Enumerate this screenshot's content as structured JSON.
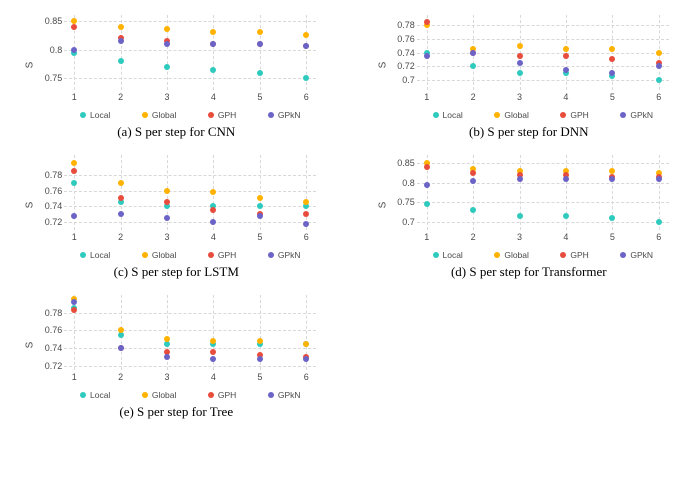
{
  "series_colors": {
    "Local": "#2ecabe",
    "Global": "#ffb300",
    "GPH": "#e74c3c",
    "GPkN": "#6c63c7"
  },
  "legend_order": [
    "Local",
    "Global",
    "GPH",
    "GPkN"
  ],
  "grid_color": "#d8d8d8",
  "background_color": "#ffffff",
  "tick_fontsize": 9,
  "caption_fontsize": 13,
  "x_values": [
    1,
    2,
    3,
    4,
    5,
    6
  ],
  "panels": [
    {
      "caption": "(a) S per step for CNN",
      "ylabel": "S",
      "ylim": [
        0.73,
        0.86
      ],
      "yticks": [
        0.75,
        0.8,
        0.85
      ],
      "series": {
        "Local": [
          0.795,
          0.78,
          0.77,
          0.765,
          0.76,
          0.75
        ],
        "Global": [
          0.85,
          0.84,
          0.835,
          0.83,
          0.83,
          0.825
        ],
        "GPH": [
          0.84,
          0.82,
          0.815,
          0.81,
          0.81,
          0.807
        ],
        "GPkN": [
          0.8,
          0.815,
          0.81,
          0.81,
          0.81,
          0.807
        ]
      }
    },
    {
      "caption": "(b) S per step for DNN",
      "ylabel": "S",
      "ylim": [
        0.685,
        0.795
      ],
      "yticks": [
        0.7,
        0.72,
        0.74,
        0.76,
        0.78
      ],
      "series": {
        "Local": [
          0.74,
          0.72,
          0.71,
          0.71,
          0.705,
          0.7
        ],
        "Global": [
          0.78,
          0.745,
          0.75,
          0.745,
          0.745,
          0.74
        ],
        "GPH": [
          0.785,
          0.74,
          0.735,
          0.735,
          0.73,
          0.725
        ],
        "GPkN": [
          0.735,
          0.74,
          0.725,
          0.715,
          0.71,
          0.72
        ]
      }
    },
    {
      "caption": "(c) S per step for LSTM",
      "ylabel": "S",
      "ylim": [
        0.71,
        0.805
      ],
      "yticks": [
        0.72,
        0.74,
        0.76,
        0.78
      ],
      "series": {
        "Local": [
          0.77,
          0.745,
          0.74,
          0.74,
          0.74,
          0.74
        ],
        "Global": [
          0.795,
          0.77,
          0.76,
          0.758,
          0.75,
          0.745
        ],
        "GPH": [
          0.785,
          0.75,
          0.745,
          0.735,
          0.73,
          0.73
        ],
        "GPkN": [
          0.728,
          0.73,
          0.725,
          0.72,
          0.728,
          0.718
        ]
      }
    },
    {
      "caption": "(d) S per step for Transformer",
      "ylabel": "S",
      "ylim": [
        0.68,
        0.87
      ],
      "yticks": [
        0.7,
        0.75,
        0.8,
        0.85
      ],
      "series": {
        "Local": [
          0.745,
          0.73,
          0.715,
          0.715,
          0.71,
          0.7
        ],
        "Global": [
          0.85,
          0.835,
          0.83,
          0.83,
          0.83,
          0.825
        ],
        "GPH": [
          0.84,
          0.825,
          0.82,
          0.82,
          0.815,
          0.815
        ],
        "GPkN": [
          0.795,
          0.805,
          0.81,
          0.81,
          0.81,
          0.81
        ]
      }
    },
    {
      "caption": "(e) S per step for Tree",
      "ylabel": "S",
      "ylim": [
        0.715,
        0.8
      ],
      "yticks": [
        0.72,
        0.74,
        0.76,
        0.78
      ],
      "series": {
        "Local": [
          0.785,
          0.755,
          0.745,
          0.745,
          0.745,
          0.745
        ],
        "Global": [
          0.795,
          0.76,
          0.75,
          0.748,
          0.748,
          0.745
        ],
        "GPH": [
          0.783,
          0.74,
          0.735,
          0.735,
          0.732,
          0.73
        ],
        "GPkN": [
          0.792,
          0.74,
          0.73,
          0.728,
          0.727,
          0.727
        ]
      }
    }
  ]
}
